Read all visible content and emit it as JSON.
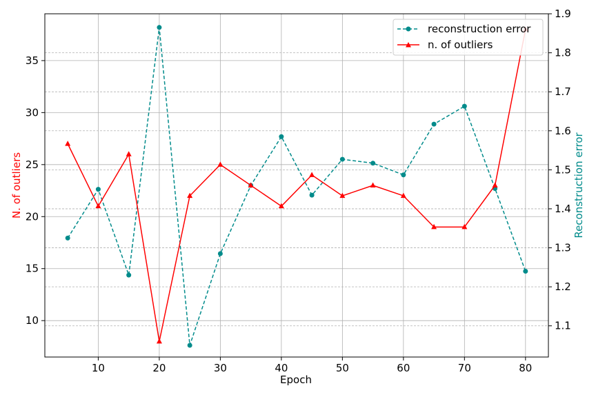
{
  "chart_data": {
    "type": "line",
    "xlabel": "Epoch",
    "ylabel_left": "N. of outliers",
    "ylabel_right": "Reconstruction error",
    "x": [
      5,
      10,
      15,
      20,
      25,
      30,
      35,
      40,
      45,
      50,
      55,
      60,
      65,
      70,
      75,
      80
    ],
    "xlim": [
      1.25,
      83.75
    ],
    "xticks": [
      10,
      20,
      30,
      40,
      50,
      60,
      70,
      80
    ],
    "ylim_left": [
      6.5,
      39.5
    ],
    "yticks_left": [
      10,
      15,
      20,
      25,
      30,
      35
    ],
    "ylim_right": [
      1.02,
      1.9
    ],
    "yticks_right": [
      1.1,
      1.2,
      1.3,
      1.4,
      1.5,
      1.6,
      1.7,
      1.8,
      1.9
    ],
    "grid": true,
    "legend_position": "top-right",
    "series": [
      {
        "name": "reconstruction error",
        "axis": "right",
        "style": "dashed",
        "marker": "circle",
        "color": "#008B8B",
        "values": [
          1.325,
          1.45,
          1.23,
          1.865,
          1.05,
          1.285,
          1.46,
          1.585,
          1.435,
          1.527,
          1.517,
          1.487,
          1.617,
          1.663,
          1.452,
          1.24
        ]
      },
      {
        "name": "n. of outliers",
        "axis": "left",
        "style": "solid",
        "marker": "triangle",
        "color": "#FF0000",
        "values": [
          27,
          21,
          26,
          8,
          22,
          25,
          23,
          21,
          24,
          22,
          23,
          22,
          19,
          19,
          23,
          38
        ]
      }
    ]
  }
}
